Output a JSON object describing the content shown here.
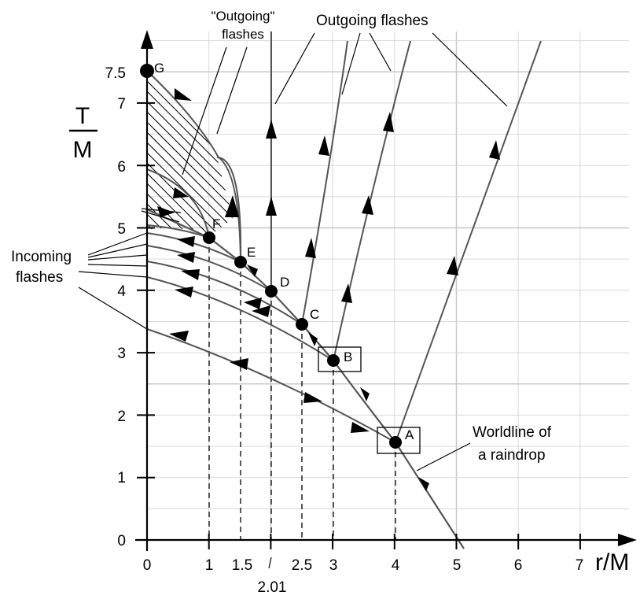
{
  "x_axis": {
    "label": "r/M",
    "ticks": [
      "0",
      "1",
      "1.5",
      "2.01",
      "2.5",
      "3",
      "4",
      "5",
      "6",
      "7"
    ]
  },
  "y_axis": {
    "label_top": "T",
    "label_bottom": "M",
    "ticks": [
      "0",
      "1",
      "2",
      "3",
      "4",
      "5",
      "6",
      "7",
      "7.5"
    ]
  },
  "events": [
    {
      "label": "A",
      "r": 4,
      "T": 1.55,
      "boxed": true
    },
    {
      "label": "B",
      "r": 3,
      "T": 2.85,
      "boxed": true
    },
    {
      "label": "C",
      "r": 2.5,
      "T": 3.45,
      "boxed": false
    },
    {
      "label": "D",
      "r": 2.01,
      "T": 3.95,
      "boxed": false
    },
    {
      "label": "E",
      "r": 1.5,
      "T": 4.45,
      "boxed": false
    },
    {
      "label": "F",
      "r": 1,
      "T": 4.85,
      "boxed": false
    },
    {
      "label": "G",
      "r": 0,
      "T": 7.5,
      "boxed": false
    }
  ],
  "annotations": {
    "outgoing_quoted_line1": "\"Outgoing\"",
    "outgoing_quoted_line2": "flashes",
    "outgoing": "Outgoing flashes",
    "incoming_line1": "Incoming",
    "incoming_line2": "flashes",
    "worldline_line1": "Worldline of",
    "worldline_line2": "a raindrop"
  },
  "colors": {
    "axis": "#000000",
    "curve": "#555555",
    "grid": "#d9d9d9"
  }
}
